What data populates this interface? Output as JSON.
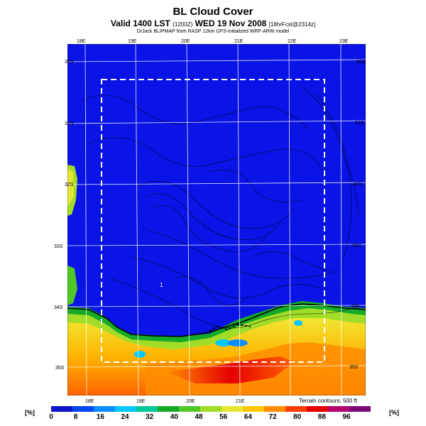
{
  "title": "BL Cloud Cover",
  "subtitle_main": "Valid 1400 LST",
  "subtitle_code": "(1200Z)",
  "subtitle_date": "WED 19 Nov 2008",
  "subtitle_fcst": "[18hrFcst@2314z]",
  "credit": "DrJack BLIPMAP from RASP 12km GFS-initialized WRF-ARW model",
  "terrain_note": "Terrain contours: 500 ft",
  "unit_label": "[%]",
  "lon_labels_top": [
    "18E",
    "19E",
    "20E",
    "21E",
    "22E",
    "23E"
  ],
  "lon_labels_bottom": [
    "18E",
    "19E",
    "20E",
    "21E"
  ],
  "lat_labels_left": [
    "30S",
    "31S",
    "32S",
    "33S",
    "34S",
    "35S"
  ],
  "lat_labels_right": [
    "30S",
    "31S",
    "32S",
    "33S",
    "34S",
    "35S"
  ],
  "colorbar": {
    "ticks": [
      "0",
      "8",
      "16",
      "24",
      "32",
      "40",
      "48",
      "56",
      "64",
      "72",
      "80",
      "88",
      "96"
    ],
    "colors": [
      "#0a14c8",
      "#0046f0",
      "#0a8cff",
      "#00c8ff",
      "#00c896",
      "#14aa28",
      "#50c828",
      "#a0dc28",
      "#e6e632",
      "#ffc800",
      "#ff8c00",
      "#ff3c00",
      "#e60000",
      "#b4006e",
      "#7a0a78"
    ]
  },
  "annotation": "1"
}
